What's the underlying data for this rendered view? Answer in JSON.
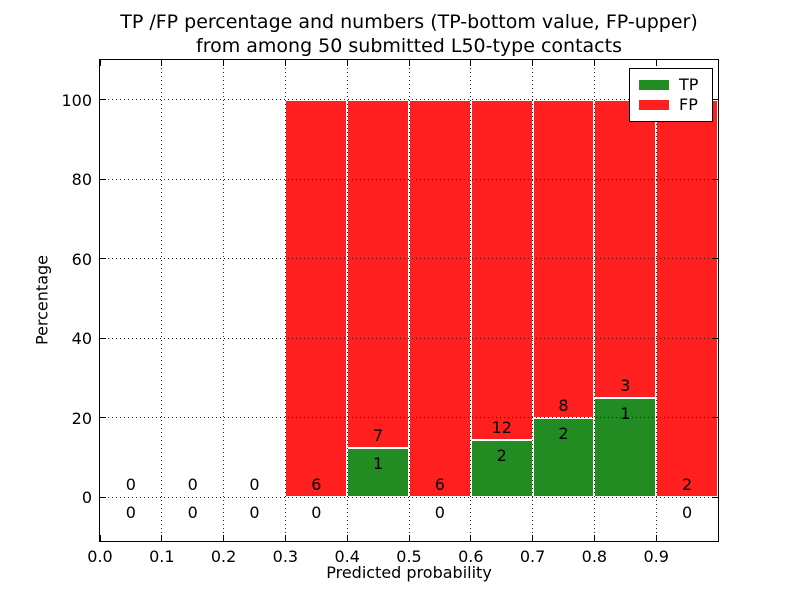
{
  "chart_data": {
    "type": "bar",
    "stacked": true,
    "title_line1": "TP /FP percentage and numbers (TP-bottom value, FP-upper)",
    "title_line2": "from among 50 submitted L50-type contacts",
    "xlabel": "Predicted probability",
    "ylabel": "Percentage",
    "xlim": [
      0.0,
      1.0
    ],
    "ylim": [
      -11,
      110
    ],
    "x_ticks": [
      {
        "value": 0.0,
        "label": "0.0"
      },
      {
        "value": 0.1,
        "label": "0.1"
      },
      {
        "value": 0.2,
        "label": "0.2"
      },
      {
        "value": 0.3,
        "label": "0.3"
      },
      {
        "value": 0.4,
        "label": "0.4"
      },
      {
        "value": 0.5,
        "label": "0.5"
      },
      {
        "value": 0.6,
        "label": "0.6"
      },
      {
        "value": 0.7,
        "label": "0.7"
      },
      {
        "value": 0.8,
        "label": "0.8"
      },
      {
        "value": 0.9,
        "label": "0.9"
      }
    ],
    "y_ticks": [
      {
        "value": 0,
        "label": "0"
      },
      {
        "value": 20,
        "label": "20"
      },
      {
        "value": 40,
        "label": "40"
      },
      {
        "value": 60,
        "label": "60"
      },
      {
        "value": 80,
        "label": "80"
      },
      {
        "value": 100,
        "label": "100"
      }
    ],
    "grid": "dotted",
    "legend": {
      "position": "upper right",
      "entries": [
        {
          "label": "TP",
          "color": "#228b22"
        },
        {
          "label": "FP",
          "color": "#ff1f1f"
        }
      ]
    },
    "colors": {
      "tp": "#228b22",
      "fp": "#ff1f1f",
      "bar_edge": "#ffffff"
    },
    "bins": [
      {
        "range": [
          0.0,
          0.1
        ],
        "tp_count": 0,
        "fp_count": 0,
        "tp_pct": 0,
        "fp_pct": 0
      },
      {
        "range": [
          0.1,
          0.2
        ],
        "tp_count": 0,
        "fp_count": 0,
        "tp_pct": 0,
        "fp_pct": 0
      },
      {
        "range": [
          0.2,
          0.3
        ],
        "tp_count": 0,
        "fp_count": 0,
        "tp_pct": 0,
        "fp_pct": 0
      },
      {
        "range": [
          0.3,
          0.4
        ],
        "tp_count": 0,
        "fp_count": 6,
        "tp_pct": 0,
        "fp_pct": 100
      },
      {
        "range": [
          0.4,
          0.5
        ],
        "tp_count": 1,
        "fp_count": 7,
        "tp_pct": 12.5,
        "fp_pct": 87.5
      },
      {
        "range": [
          0.5,
          0.6
        ],
        "tp_count": 0,
        "fp_count": 6,
        "tp_pct": 0,
        "fp_pct": 100
      },
      {
        "range": [
          0.6,
          0.7
        ],
        "tp_count": 2,
        "fp_count": 12,
        "tp_pct": 14.2857,
        "fp_pct": 85.7143
      },
      {
        "range": [
          0.7,
          0.8
        ],
        "tp_count": 2,
        "fp_count": 8,
        "tp_pct": 20,
        "fp_pct": 80
      },
      {
        "range": [
          0.8,
          0.9
        ],
        "tp_count": 1,
        "fp_count": 3,
        "tp_pct": 25,
        "fp_pct": 75
      },
      {
        "range": [
          0.9,
          1.0
        ],
        "tp_count": 0,
        "fp_count": 2,
        "tp_pct": 0,
        "fp_pct": 100
      }
    ]
  }
}
